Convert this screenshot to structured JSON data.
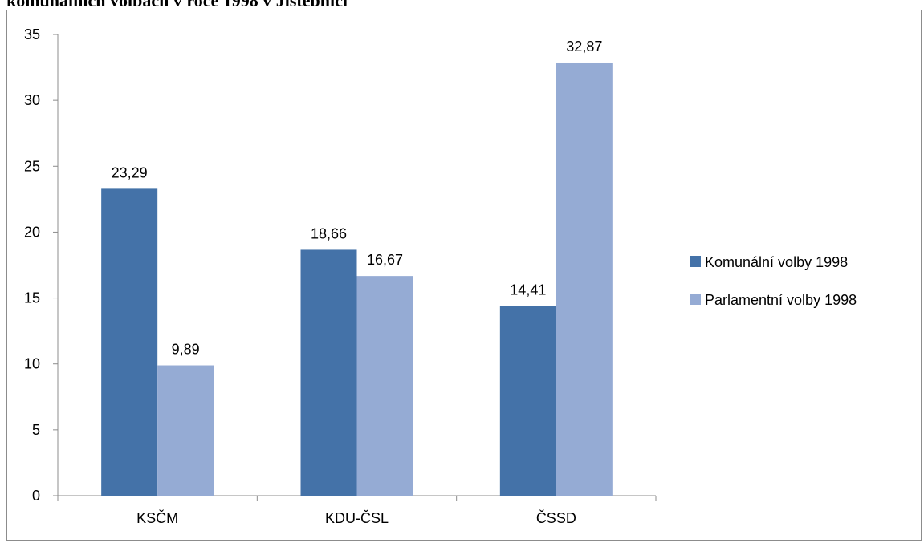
{
  "chart_data": {
    "type": "bar",
    "title": "komunálních volbách v roce 1998 v Jistebníci",
    "categories": [
      "KSČM",
      "KDU-ČSL",
      "ČSSD"
    ],
    "series": [
      {
        "name": "Komunální volby 1998",
        "values": [
          23.29,
          18.66,
          14.41
        ],
        "labels": [
          "23,29",
          "18,66",
          "14,41"
        ],
        "color": "#4472a8"
      },
      {
        "name": "Parlamentní volby 1998",
        "values": [
          9.89,
          16.67,
          32.87
        ],
        "labels": [
          "9,89",
          "16,67",
          "32,87"
        ],
        "color": "#95abd4"
      }
    ],
    "y_ticks": [
      "0",
      "5",
      "10",
      "15",
      "20",
      "25",
      "30",
      "35"
    ],
    "ylim": [
      0,
      35
    ],
    "grid": false,
    "legend_position": "right"
  }
}
